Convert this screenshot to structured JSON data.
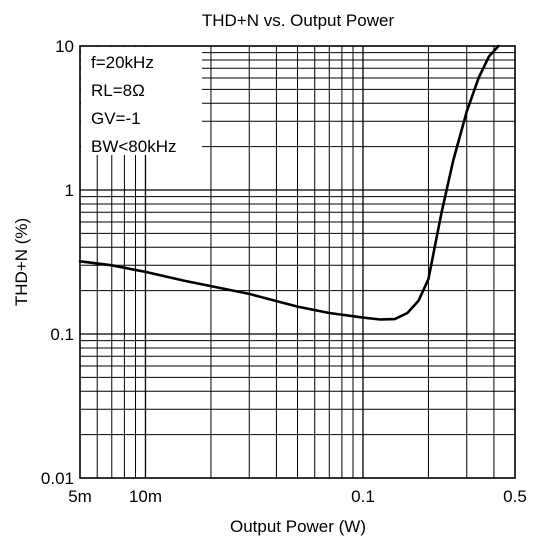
{
  "chart_data": {
    "type": "line",
    "title": "THD+N vs. Output Power",
    "xlabel": "Output Power (W)",
    "ylabel": "THD+N (%)",
    "x_scale": "log",
    "y_scale": "log",
    "xlim": [
      0.005,
      0.5
    ],
    "ylim": [
      0.01,
      10
    ],
    "x_ticks": [
      {
        "value": 0.005,
        "label": "5m"
      },
      {
        "value": 0.01,
        "label": "10m"
      },
      {
        "value": 0.1,
        "label": "0.1"
      },
      {
        "value": 0.5,
        "label": "0.5"
      }
    ],
    "y_ticks": [
      {
        "value": 0.01,
        "label": "0.01"
      },
      {
        "value": 0.1,
        "label": "0.1"
      },
      {
        "value": 1,
        "label": "1"
      },
      {
        "value": 10,
        "label": "10"
      }
    ],
    "grid": true,
    "annotations": [
      "f=20kHz",
      "RL=8Ω",
      "GV=-1",
      "BW<80kHz"
    ],
    "series": [
      {
        "color": "#000000",
        "x": [
          0.005,
          0.007,
          0.01,
          0.015,
          0.02,
          0.03,
          0.05,
          0.07,
          0.1,
          0.12,
          0.14,
          0.16,
          0.18,
          0.2,
          0.23,
          0.26,
          0.3,
          0.34,
          0.38,
          0.42
        ],
        "y": [
          0.32,
          0.3,
          0.27,
          0.235,
          0.215,
          0.19,
          0.155,
          0.14,
          0.13,
          0.126,
          0.127,
          0.14,
          0.17,
          0.24,
          0.7,
          1.6,
          3.5,
          6.0,
          8.5,
          10
        ]
      }
    ]
  }
}
